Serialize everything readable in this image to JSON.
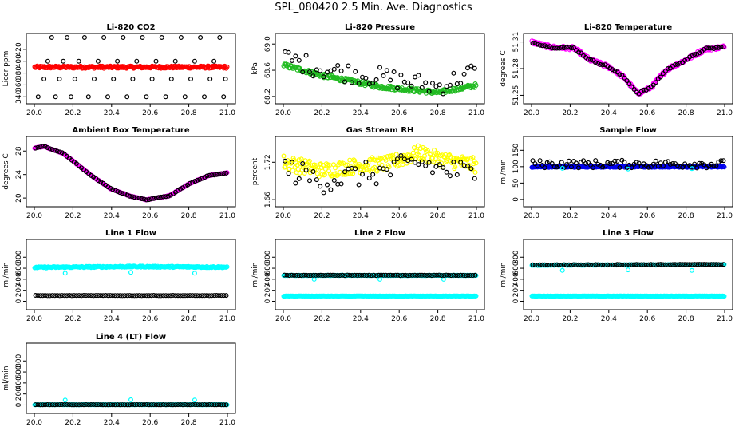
{
  "main_title": "SPL_080420  2.5 Min. Ave. Diagnostics",
  "colors": {
    "black": "#000000",
    "red": "#ff0000",
    "green": "#22bb22",
    "magenta": "#ff00ff",
    "yellow": "#ffff00",
    "blue": "#0000ee",
    "cyan": "#00ffff"
  },
  "chart_data": [
    {
      "type": "scatter",
      "title": "Li-820 CO2",
      "ylabel": "Licor ppm",
      "xlim": [
        20.0,
        21.0
      ],
      "ylim": [
        335,
        440
      ],
      "xticks": [
        "20.0",
        "20.2",
        "20.4",
        "20.6",
        "20.8",
        "21.0"
      ],
      "yticks": [
        "340",
        "360",
        "380",
        "400",
        "420"
      ],
      "series": [
        {
          "color": "#ff0000",
          "shape": "circle",
          "points": "dense",
          "trend": [
            [
              20.0,
              390
            ],
            [
              21.0,
              390
            ]
          ],
          "noise": 2
        },
        {
          "color": "#000000",
          "shape": "circle",
          "points": "sparse",
          "values": [
            [
              20.02,
              340
            ],
            [
              20.05,
              370
            ],
            [
              20.07,
              400
            ],
            [
              20.09,
              440
            ],
            [
              20.11,
              340
            ],
            [
              20.13,
              370
            ],
            [
              20.15,
              400
            ],
            [
              20.17,
              440
            ],
            [
              20.19,
              340
            ],
            [
              20.21,
              370
            ],
            [
              20.23,
              400
            ],
            [
              20.26,
              440
            ],
            [
              20.28,
              340
            ],
            [
              20.31,
              370
            ],
            [
              20.33,
              400
            ],
            [
              20.36,
              440
            ],
            [
              20.38,
              340
            ],
            [
              20.41,
              370
            ],
            [
              20.43,
              400
            ],
            [
              20.46,
              440
            ],
            [
              20.48,
              340
            ],
            [
              20.51,
              370
            ],
            [
              20.53,
              400
            ],
            [
              20.56,
              440
            ],
            [
              20.58,
              340
            ],
            [
              20.61,
              370
            ],
            [
              20.63,
              400
            ],
            [
              20.66,
              440
            ],
            [
              20.68,
              340
            ],
            [
              20.71,
              370
            ],
            [
              20.73,
              400
            ],
            [
              20.76,
              440
            ],
            [
              20.78,
              340
            ],
            [
              20.81,
              370
            ],
            [
              20.83,
              400
            ],
            [
              20.86,
              440
            ],
            [
              20.88,
              340
            ],
            [
              20.91,
              370
            ],
            [
              20.93,
              400
            ],
            [
              20.96,
              440
            ],
            [
              20.98,
              340
            ],
            [
              20.99,
              370
            ]
          ]
        }
      ]
    },
    {
      "type": "scatter",
      "title": "Li-820 Pressure",
      "ylabel": "kPa",
      "xlim": [
        20.0,
        21.0
      ],
      "ylim": [
        68.15,
        69.1
      ],
      "xticks": [
        "20.0",
        "20.2",
        "20.4",
        "20.6",
        "20.8",
        "21.0"
      ],
      "yticks": [
        "68.2",
        "68.6",
        "69.0"
      ],
      "series": [
        {
          "color": "#22bb22",
          "shape": "circle",
          "points": "dense",
          "trend": [
            [
              20.0,
              68.68
            ],
            [
              20.2,
              68.52
            ],
            [
              20.5,
              68.35
            ],
            [
              20.8,
              68.26
            ],
            [
              21.0,
              68.37
            ]
          ],
          "noise": 0.03
        },
        {
          "color": "#000000",
          "shape": "circle",
          "points": "sparse",
          "trend": [
            [
              20.0,
              68.8
            ],
            [
              20.2,
              68.62
            ],
            [
              20.5,
              68.5
            ],
            [
              20.8,
              68.35
            ],
            [
              21.0,
              68.6
            ]
          ],
          "noise": 0.15
        }
      ]
    },
    {
      "type": "scatter",
      "title": "Li-820 Temperature",
      "ylabel": "degrees C",
      "xlim": [
        20.0,
        21.0
      ],
      "ylim": [
        51.245,
        51.315
      ],
      "xticks": [
        "20.0",
        "20.2",
        "20.4",
        "20.6",
        "20.8",
        "21.0"
      ],
      "yticks": [
        "51.25",
        "51.28",
        "51.31"
      ],
      "series": [
        {
          "color": "#ff00ff",
          "shape": "circle",
          "points": "dense",
          "trend": [
            [
              20.0,
              51.31
            ],
            [
              20.1,
              51.304
            ],
            [
              20.22,
              51.303
            ],
            [
              20.3,
              51.29
            ],
            [
              20.4,
              51.282
            ],
            [
              20.48,
              51.27
            ],
            [
              20.55,
              51.252
            ],
            [
              20.62,
              51.259
            ],
            [
              20.7,
              51.279
            ],
            [
              20.8,
              51.29
            ],
            [
              20.9,
              51.302
            ],
            [
              20.99,
              51.304
            ]
          ],
          "noise": 0.002
        },
        {
          "color": "#000000",
          "shape": "circle",
          "points": "medium",
          "trend": [
            [
              20.0,
              51.31
            ],
            [
              20.1,
              51.304
            ],
            [
              20.22,
              51.303
            ],
            [
              20.3,
              51.29
            ],
            [
              20.4,
              51.282
            ],
            [
              20.48,
              51.27
            ],
            [
              20.55,
              51.252
            ],
            [
              20.62,
              51.259
            ],
            [
              20.7,
              51.279
            ],
            [
              20.8,
              51.29
            ],
            [
              20.9,
              51.302
            ],
            [
              20.99,
              51.304
            ]
          ],
          "noise": 0.001
        }
      ]
    },
    {
      "type": "scatter",
      "title": "Ambient Box Temperature",
      "ylabel": "degrees C",
      "xlim": [
        20.0,
        21.0
      ],
      "ylim": [
        19.2,
        29.8
      ],
      "xticks": [
        "20.0",
        "20.2",
        "20.4",
        "20.6",
        "20.8",
        "21.0"
      ],
      "yticks": [
        "20",
        "24",
        "28"
      ],
      "series": [
        {
          "color": "#ff00ff",
          "shape": "circle",
          "points": "dense",
          "trend": [
            [
              20.0,
              28.5
            ],
            [
              20.05,
              28.8
            ],
            [
              20.15,
              27.6
            ],
            [
              20.3,
              23.7
            ],
            [
              20.4,
              21.5
            ],
            [
              20.5,
              20.3
            ],
            [
              20.58,
              19.7
            ],
            [
              20.7,
              20.4
            ],
            [
              20.8,
              22.4
            ],
            [
              20.9,
              23.8
            ],
            [
              21.0,
              24.3
            ]
          ],
          "noise": 0.05
        },
        {
          "color": "#000000",
          "shape": "circle",
          "points": "medium",
          "trend": [
            [
              20.0,
              28.5
            ],
            [
              20.05,
              28.8
            ],
            [
              20.15,
              27.6
            ],
            [
              20.3,
              23.7
            ],
            [
              20.4,
              21.5
            ],
            [
              20.5,
              20.3
            ],
            [
              20.58,
              19.7
            ],
            [
              20.7,
              20.4
            ],
            [
              20.8,
              22.4
            ],
            [
              20.9,
              23.8
            ],
            [
              21.0,
              24.3
            ]
          ],
          "noise": 0.05
        }
      ]
    },
    {
      "type": "scatter",
      "title": "Gas Stream RH",
      "ylabel": "percent",
      "xlim": [
        20.0,
        21.0
      ],
      "ylim": [
        1.655,
        1.755
      ],
      "xticks": [
        "20.0",
        "20.2",
        "20.4",
        "20.6",
        "20.8",
        "21.0"
      ],
      "yticks": [
        "1.66",
        "1.72"
      ],
      "series": [
        {
          "color": "#ffff00",
          "shape": "circle",
          "points": "dense",
          "trend": [
            [
              20.0,
              1.72
            ],
            [
              20.2,
              1.707
            ],
            [
              20.4,
              1.715
            ],
            [
              20.55,
              1.718
            ],
            [
              20.7,
              1.735
            ],
            [
              20.8,
              1.726
            ],
            [
              21.0,
              1.715
            ]
          ],
          "noise": 0.012
        },
        {
          "color": "#000000",
          "shape": "circle",
          "points": "sparse",
          "trend": [
            [
              20.0,
              1.71
            ],
            [
              20.2,
              1.69
            ],
            [
              20.4,
              1.7
            ],
            [
              20.55,
              1.705
            ],
            [
              20.7,
              1.72
            ],
            [
              20.8,
              1.71
            ],
            [
              21.0,
              1.7
            ]
          ],
          "noise": 0.02
        }
      ]
    },
    {
      "type": "scatter",
      "title": "Sample Flow",
      "ylabel": "ml/min",
      "xlim": [
        20.0,
        21.0
      ],
      "ylim": [
        -10,
        180
      ],
      "xticks": [
        "20.0",
        "20.2",
        "20.4",
        "20.6",
        "20.8",
        "21.0"
      ],
      "yticks": [
        "0",
        "50",
        "100",
        "150"
      ],
      "series": [
        {
          "color": "#0000ee",
          "shape": "circle",
          "points": "dense",
          "trend": [
            [
              20.0,
              100
            ],
            [
              21.0,
              100
            ]
          ],
          "noise": 2
        },
        {
          "color": "#000000",
          "shape": "circle",
          "points": "medium",
          "trend": [
            [
              20.0,
              108
            ],
            [
              21.0,
              108
            ]
          ],
          "noise": 12
        },
        {
          "color": "#00ffff",
          "shape": "circle",
          "points": "few",
          "values": [
            [
              20.16,
              95
            ],
            [
              20.5,
              93
            ],
            [
              20.83,
              94
            ]
          ]
        }
      ]
    },
    {
      "type": "scatter",
      "title": "Line 1 Flow",
      "ylabel": "ml/min",
      "xlim": [
        20.0,
        21.0
      ],
      "ylim": [
        -80,
        1050
      ],
      "xticks": [
        "20.0",
        "20.2",
        "20.4",
        "20.6",
        "20.8",
        "21.0"
      ],
      "yticks": [
        "0",
        "200",
        "400",
        "600",
        "800"
      ],
      "series": [
        {
          "color": "#00ffff",
          "shape": "circle",
          "points": "dense",
          "trend": [
            [
              20.0,
              615
            ],
            [
              20.5,
              630
            ],
            [
              21.0,
              620
            ]
          ],
          "noise": 12
        },
        {
          "color": "#00ffff",
          "shape": "circle",
          "points": "few",
          "values": [
            [
              20.16,
              510
            ],
            [
              20.5,
              525
            ],
            [
              20.83,
              510
            ]
          ]
        },
        {
          "color": "#000000",
          "shape": "circle",
          "points": "medium",
          "trend": [
            [
              20.0,
              105
            ],
            [
              21.0,
              105
            ]
          ],
          "noise": 3
        }
      ]
    },
    {
      "type": "scatter",
      "title": "Line 2 Flow",
      "ylabel": "ml/min",
      "xlim": [
        20.0,
        21.0
      ],
      "ylim": [
        -80,
        1050
      ],
      "xticks": [
        "20.0",
        "20.2",
        "20.4",
        "20.6",
        "20.8",
        "21.0"
      ],
      "yticks": [
        "0",
        "200",
        "400",
        "600",
        "800"
      ],
      "series": [
        {
          "color": "#00ffff",
          "shape": "circle",
          "points": "dense",
          "trend": [
            [
              20.0,
              470
            ],
            [
              21.0,
              470
            ]
          ],
          "noise": 4
        },
        {
          "color": "#00ffff",
          "shape": "circle",
          "points": "dense",
          "trend": [
            [
              20.0,
              95
            ],
            [
              21.0,
              95
            ]
          ],
          "noise": 3
        },
        {
          "color": "#00ffff",
          "shape": "circle",
          "points": "few",
          "values": [
            [
              20.16,
              400
            ],
            [
              20.5,
              400
            ],
            [
              20.83,
              400
            ]
          ]
        },
        {
          "color": "#000000",
          "shape": "circle",
          "points": "medium",
          "trend": [
            [
              20.0,
              472
            ],
            [
              21.0,
              472
            ]
          ],
          "noise": 4
        }
      ]
    },
    {
      "type": "scatter",
      "title": "Line 3 Flow",
      "ylabel": "ml/min",
      "xlim": [
        20.0,
        21.0
      ],
      "ylim": [
        -80,
        1050
      ],
      "xticks": [
        "20.0",
        "20.2",
        "20.4",
        "20.6",
        "20.8",
        "21.0"
      ],
      "yticks": [
        "0",
        "200",
        "400",
        "600",
        "800"
      ],
      "series": [
        {
          "color": "#00ffff",
          "shape": "circle",
          "points": "dense",
          "trend": [
            [
              20.0,
              655
            ],
            [
              21.0,
              665
            ]
          ],
          "noise": 5
        },
        {
          "color": "#00ffff",
          "shape": "circle",
          "points": "dense",
          "trend": [
            [
              20.0,
              95
            ],
            [
              21.0,
              95
            ]
          ],
          "noise": 3
        },
        {
          "color": "#00ffff",
          "shape": "circle",
          "points": "few",
          "values": [
            [
              20.16,
              560
            ],
            [
              20.5,
              570
            ],
            [
              20.83,
              560
            ]
          ]
        },
        {
          "color": "#000000",
          "shape": "circle",
          "points": "medium",
          "trend": [
            [
              20.0,
              660
            ],
            [
              21.0,
              670
            ]
          ],
          "noise": 5
        }
      ]
    },
    {
      "type": "scatter",
      "title": "Line 4 (LT) Flow",
      "ylabel": "ml/min",
      "xlim": [
        20.0,
        21.0
      ],
      "ylim": [
        -80,
        1050
      ],
      "xticks": [
        "20.0",
        "20.2",
        "20.4",
        "20.6",
        "20.8",
        "21.0"
      ],
      "yticks": [
        "0",
        "200",
        "400",
        "600",
        "800"
      ],
      "series": [
        {
          "color": "#00ffff",
          "shape": "circle",
          "points": "dense",
          "trend": [
            [
              20.0,
              5
            ],
            [
              21.0,
              5
            ]
          ],
          "noise": 2
        },
        {
          "color": "#00ffff",
          "shape": "circle",
          "points": "few",
          "values": [
            [
              20.16,
              90
            ],
            [
              20.5,
              95
            ],
            [
              20.83,
              90
            ]
          ]
        },
        {
          "color": "#000000",
          "shape": "circle",
          "points": "medium",
          "trend": [
            [
              20.0,
              5
            ],
            [
              21.0,
              5
            ]
          ],
          "noise": 2
        }
      ]
    }
  ]
}
